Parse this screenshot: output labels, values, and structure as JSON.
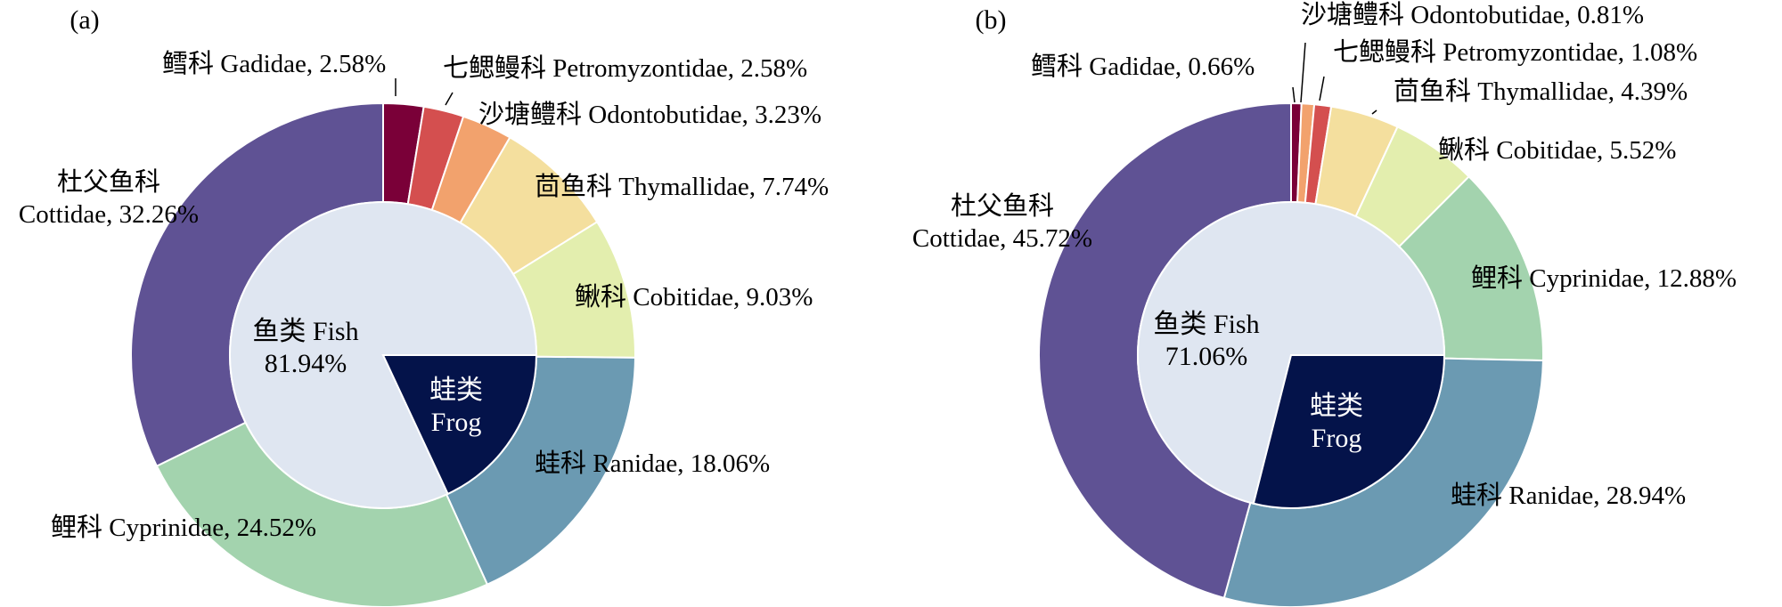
{
  "colors": {
    "Gadidae": "#7a0038",
    "Petromyzontidae": "#d44f4f",
    "Odontobutidae": "#f2a26d",
    "Thymallidae": "#f4df9e",
    "Cobitidae": "#e3eeae",
    "Ranidae": "#6b9ab2",
    "Cyprinidae": "#a3d3ae",
    "Cottidae": "#5f5294",
    "fish_inner": "#dfe6f1",
    "frog_inner": "#04134a"
  },
  "chart_data": [
    {
      "type": "pie",
      "panel_label": "(a)",
      "outer": {
        "slices": [
          {
            "family": "Gadidae",
            "label_cn": "鳕科",
            "label_en": "Gadidae",
            "value": 2.58,
            "value_text": "2.58%"
          },
          {
            "family": "Petromyzontidae",
            "label_cn": "七鳃鳗科",
            "label_en": "Petromyzontidae",
            "value": 2.58,
            "value_text": "2.58%"
          },
          {
            "family": "Odontobutidae",
            "label_cn": "沙塘鳢科",
            "label_en": "Odontobutidae",
            "value": 3.23,
            "value_text": "3.23%"
          },
          {
            "family": "Thymallidae",
            "label_cn": "茴鱼科",
            "label_en": "Thymallidae",
            "value": 7.74,
            "value_text": "7.74%"
          },
          {
            "family": "Cobitidae",
            "label_cn": "鳅科",
            "label_en": "Cobitidae",
            "value": 9.03,
            "value_text": "9.03%"
          },
          {
            "family": "Ranidae",
            "label_cn": "蛙科",
            "label_en": "Ranidae",
            "value": 18.06,
            "value_text": "18.06%"
          },
          {
            "family": "Cyprinidae",
            "label_cn": "鲤科",
            "label_en": "Cyprinidae",
            "value": 24.52,
            "value_text": "24.52%"
          },
          {
            "family": "Cottidae",
            "label_cn": "杜父鱼科",
            "label_en": "Cottidae",
            "value": 32.26,
            "value_text": "32.26%"
          }
        ]
      },
      "inner": {
        "slices": [
          {
            "group": "fish",
            "label_cn": "鱼类",
            "label_en": "Fish",
            "value": 81.94,
            "value_text": "81.94%"
          },
          {
            "group": "frog",
            "label_cn": "蛙类",
            "label_en": "Frog",
            "value": 18.06,
            "value_text": ""
          }
        ]
      }
    },
    {
      "type": "pie",
      "panel_label": "(b)",
      "outer": {
        "slices": [
          {
            "family": "Gadidae",
            "label_cn": "鳕科",
            "label_en": "Gadidae",
            "value": 0.66,
            "value_text": "0.66%"
          },
          {
            "family": "Odontobutidae",
            "label_cn": "沙塘鳢科",
            "label_en": "Odontobutidae",
            "value": 0.81,
            "value_text": "0.81%"
          },
          {
            "family": "Petromyzontidae",
            "label_cn": "七鳃鳗科",
            "label_en": "Petromyzontidae",
            "value": 1.08,
            "value_text": "1.08%"
          },
          {
            "family": "Thymallidae",
            "label_cn": "茴鱼科",
            "label_en": "Thymallidae",
            "value": 4.39,
            "value_text": "4.39%"
          },
          {
            "family": "Cobitidae",
            "label_cn": "鳅科",
            "label_en": "Cobitidae",
            "value": 5.52,
            "value_text": "5.52%"
          },
          {
            "family": "Cyprinidae",
            "label_cn": "鲤科",
            "label_en": "Cyprinidae",
            "value": 12.88,
            "value_text": "12.88%"
          },
          {
            "family": "Ranidae",
            "label_cn": "蛙科",
            "label_en": "Ranidae",
            "value": 28.94,
            "value_text": "28.94%"
          },
          {
            "family": "Cottidae",
            "label_cn": "杜父鱼科",
            "label_en": "Cottidae",
            "value": 45.72,
            "value_text": "45.72%"
          }
        ]
      },
      "inner": {
        "slices": [
          {
            "group": "fish",
            "label_cn": "鱼类",
            "label_en": "Fish",
            "value": 71.06,
            "value_text": "71.06%"
          },
          {
            "group": "frog",
            "label_cn": "蛙类",
            "label_en": "Frog",
            "value": 28.94,
            "value_text": ""
          }
        ]
      }
    }
  ]
}
